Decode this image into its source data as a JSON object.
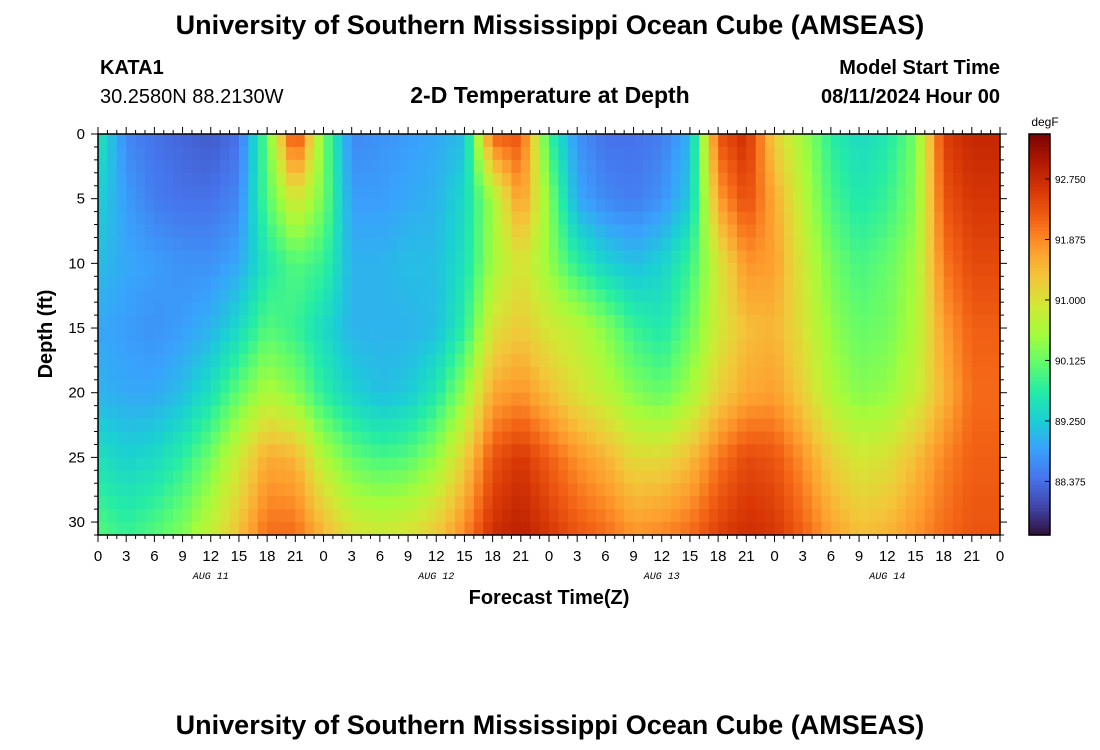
{
  "header": {
    "title_top": "University of Southern Mississippi Ocean Cube (AMSEAS)",
    "station_id": "KATA1",
    "coords": "30.2580N  88.2130W",
    "subtitle": "2-D Temperature at Depth",
    "model_start_label": "Model Start Time",
    "model_start_value": "08/11/2024 Hour 00",
    "title_bottom": "University of Southern Mississippi Ocean Cube (AMSEAS)"
  },
  "colors": {
    "scale": [
      "#30123b",
      "#4145ab",
      "#4675ed",
      "#39a2fc",
      "#1bcfd4",
      "#24eca6",
      "#61fc6c",
      "#a4fc3b",
      "#d1e834",
      "#f3c63a",
      "#fe9b2d",
      "#f36315",
      "#d93806",
      "#b11901",
      "#7a0402"
    ],
    "axis": "#000000",
    "background": "#ffffff"
  },
  "chart_data": {
    "type": "heatmap",
    "title": "2-D Temperature at Depth",
    "xlabel": "Forecast Time(Z)",
    "ylabel": "Depth (ft)",
    "colorbar_label": "degF",
    "x_range_hours": [
      0,
      96
    ],
    "y_range_ft": [
      0,
      31
    ],
    "x_tick_labels": [
      "0",
      "3",
      "6",
      "9",
      "12",
      "15",
      "18",
      "21",
      "0",
      "3",
      "6",
      "9",
      "12",
      "15",
      "18",
      "21",
      "0",
      "3",
      "6",
      "9",
      "12",
      "15",
      "18",
      "21",
      "0",
      "3",
      "6",
      "9",
      "12",
      "15",
      "18",
      "21",
      "0"
    ],
    "y_ticks": [
      0,
      5,
      10,
      15,
      20,
      25,
      30
    ],
    "y_tick_labels": [
      "0",
      "5",
      "10",
      "15",
      "20",
      "25",
      "30"
    ],
    "day_labels": [
      {
        "hour": 12,
        "label": "AUG 11"
      },
      {
        "hour": 36,
        "label": "AUG 12"
      },
      {
        "hour": 60,
        "label": "AUG 13"
      },
      {
        "hour": 84,
        "label": "AUG 14"
      }
    ],
    "colorbar": {
      "min": 87.6,
      "max": 93.4,
      "ticks": [
        88.375,
        89.25,
        90.125,
        91.0,
        91.875,
        92.75
      ],
      "tick_labels": [
        "88.375",
        "89.250",
        "90.125",
        "91.000",
        "91.875",
        "92.750"
      ]
    },
    "depths_ft": [
      0,
      5,
      10,
      15,
      20,
      25,
      31
    ],
    "hours": [
      0,
      3,
      6,
      9,
      12,
      15,
      18,
      21,
      24,
      27,
      30,
      33,
      36,
      39,
      42,
      45,
      48,
      51,
      54,
      57,
      60,
      63,
      66,
      69,
      72,
      75,
      78,
      81,
      84,
      87,
      90,
      93,
      96
    ],
    "values_degF": [
      [
        89.6,
        88.6,
        88.4,
        88.3,
        88.2,
        88.4,
        90.1,
        92.6,
        90.2,
        88.6,
        88.7,
        88.8,
        88.9,
        89.1,
        92.2,
        92.3,
        89.8,
        88.7,
        88.4,
        88.4,
        88.5,
        89.0,
        92.3,
        92.7,
        91.2,
        90.5,
        89.7,
        89.4,
        89.6,
        90.2,
        92.5,
        92.8,
        92.8
      ],
      [
        89.3,
        88.8,
        88.5,
        88.4,
        88.4,
        88.6,
        90.0,
        91.0,
        90.2,
        88.8,
        88.8,
        88.9,
        89.0,
        89.4,
        90.5,
        91.8,
        90.3,
        88.9,
        88.6,
        88.5,
        88.7,
        89.2,
        91.7,
        92.4,
        91.6,
        90.7,
        89.9,
        89.6,
        89.8,
        90.3,
        92.3,
        92.6,
        92.6
      ],
      [
        89.1,
        88.9,
        88.8,
        88.7,
        88.7,
        88.9,
        89.6,
        90.0,
        89.8,
        89.0,
        89.0,
        89.1,
        89.1,
        89.5,
        90.5,
        91.0,
        90.4,
        89.7,
        89.3,
        89.1,
        89.3,
        89.8,
        90.9,
        91.8,
        91.7,
        90.9,
        90.2,
        89.9,
        90.1,
        90.5,
        92.0,
        92.4,
        92.4
      ],
      [
        88.9,
        88.8,
        88.7,
        88.8,
        89.0,
        89.4,
        90.0,
        89.8,
        89.4,
        89.0,
        89.0,
        89.0,
        89.1,
        89.7,
        91.0,
        91.3,
        90.9,
        90.7,
        90.3,
        89.8,
        89.6,
        90.1,
        90.9,
        91.4,
        91.5,
        91.0,
        90.4,
        90.1,
        90.2,
        90.6,
        91.7,
        92.2,
        92.2
      ],
      [
        89.0,
        88.9,
        88.9,
        89.1,
        89.5,
        90.1,
        90.6,
        90.3,
        89.7,
        89.3,
        89.1,
        89.2,
        89.6,
        90.4,
        91.6,
        91.8,
        91.4,
        91.0,
        90.7,
        90.3,
        90.1,
        90.5,
        91.2,
        91.6,
        91.7,
        91.2,
        90.6,
        90.3,
        90.4,
        90.8,
        91.5,
        92.1,
        92.1
      ],
      [
        89.5,
        89.3,
        89.4,
        89.7,
        90.2,
        90.9,
        91.6,
        91.5,
        90.6,
        90.1,
        89.9,
        90.0,
        90.4,
        91.2,
        92.3,
        92.6,
        92.2,
        91.8,
        91.5,
        91.1,
        91.1,
        91.4,
        92.0,
        92.4,
        92.3,
        91.8,
        91.2,
        90.9,
        91.0,
        91.4,
        91.9,
        92.2,
        92.2
      ],
      [
        90.0,
        89.8,
        90.0,
        90.3,
        90.8,
        91.4,
        92.1,
        92.1,
        91.5,
        91.0,
        90.9,
        91.0,
        91.3,
        91.9,
        92.7,
        92.9,
        92.6,
        92.3,
        92.1,
        91.8,
        91.9,
        92.1,
        92.5,
        92.7,
        92.6,
        92.2,
        91.7,
        91.4,
        91.5,
        91.8,
        92.1,
        92.3,
        92.3
      ]
    ]
  }
}
